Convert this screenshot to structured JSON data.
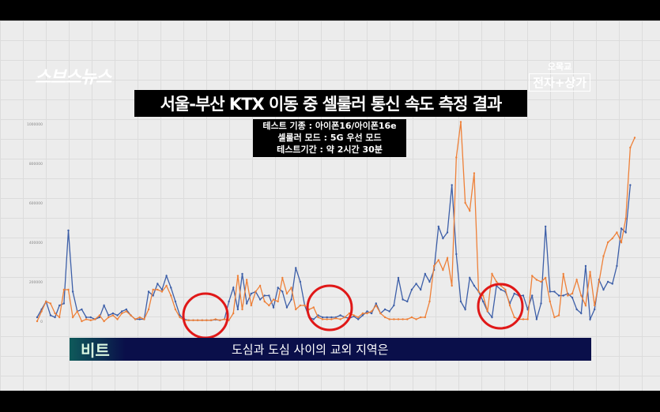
{
  "logo": "스브스뉴스",
  "brand": {
    "line1": "오목교",
    "line2": "전자+상가"
  },
  "title": "서울-부산 KTX 이동 중 셀룰러 통신 속도 측정 결과",
  "subtitle": [
    "테스트 기종 : 아이폰16/아이폰16e",
    "셀룰러 모드 : 5G 우선 모드",
    "테스트기간 : 약 2시간 30분"
  ],
  "caption": {
    "tag": "비트",
    "text": "도심과 도심 사이의 교외 지역은"
  },
  "chart_data": {
    "type": "line",
    "title": "서울-부산 KTX 이동 중 셀룰러 통신 속도 측정 결과",
    "ylim": [
      0,
      1000000
    ],
    "yticks": [
      "0",
      "200000",
      "400000",
      "600000",
      "800000",
      "1000000"
    ],
    "grid": true,
    "legend": "none",
    "colors": {
      "blue": "#3d5fa8",
      "orange": "#ee8038",
      "highlight": "#e01818"
    },
    "series": [
      {
        "color": "blue",
        "values": [
          20000,
          60000,
          100000,
          30000,
          20000,
          80000,
          90000,
          460000,
          150000,
          50000,
          60000,
          20000,
          20000,
          10000,
          20000,
          80000,
          30000,
          40000,
          30000,
          50000,
          60000,
          30000,
          10000,
          10000,
          10000,
          150000,
          130000,
          190000,
          160000,
          230000,
          170000,
          100000,
          30000,
          10000,
          5000,
          5000,
          5000,
          5000,
          5000,
          5000,
          8000,
          5000,
          10000,
          100000,
          170000,
          60000,
          240000,
          90000,
          140000,
          150000,
          110000,
          130000,
          130000,
          70000,
          170000,
          150000,
          70000,
          110000,
          270000,
          200000,
          80000,
          20000,
          10000,
          30000,
          20000,
          20000,
          20000,
          20000,
          30000,
          20000,
          15000,
          25000,
          10000,
          30000,
          50000,
          40000,
          90000,
          40000,
          60000,
          50000,
          80000,
          220000,
          110000,
          100000,
          160000,
          190000,
          160000,
          240000,
          200000,
          260000,
          480000,
          420000,
          450000,
          690000,
          340000,
          100000,
          60000,
          220000,
          180000,
          150000,
          100000,
          50000,
          20000,
          180000,
          160000,
          150000,
          90000,
          140000,
          130000,
          130000,
          60000,
          130000,
          10000,
          90000,
          480000,
          150000,
          150000,
          130000,
          130000,
          140000,
          120000,
          60000,
          40000,
          280000,
          10000,
          60000,
          210000,
          160000,
          200000,
          190000,
          280000,
          470000,
          450000,
          690000
        ]
      },
      {
        "color": "orange",
        "values": [
          0,
          50000,
          100000,
          90000,
          40000,
          20000,
          160000,
          160000,
          20000,
          50000,
          0,
          10000,
          5000,
          10000,
          30000,
          0,
          20000,
          30000,
          10000,
          40000,
          50000,
          30000,
          10000,
          20000,
          10000,
          60000,
          160000,
          160000,
          150000,
          180000,
          130000,
          60000,
          20000,
          5000,
          5000,
          5000,
          5000,
          5000,
          5000,
          5000,
          10000,
          5000,
          10000,
          5000,
          40000,
          230000,
          60000,
          210000,
          80000,
          150000,
          180000,
          100000,
          80000,
          110000,
          100000,
          220000,
          140000,
          170000,
          60000,
          80000,
          80000,
          60000,
          70000,
          20000,
          10000,
          10000,
          10000,
          15000,
          10000,
          20000,
          40000,
          30000,
          20000,
          40000,
          40000,
          50000,
          80000,
          40000,
          20000,
          10000,
          10000,
          10000,
          10000,
          10000,
          20000,
          10000,
          20000,
          20000,
          100000,
          280000,
          310000,
          260000,
          320000,
          180000,
          830000,
          1010000,
          600000,
          560000,
          750000,
          150000,
          130000,
          50000,
          240000,
          200000,
          180000,
          160000,
          80000,
          20000,
          10000,
          10000,
          10000,
          230000,
          210000,
          200000,
          220000,
          100000,
          20000,
          30000,
          240000,
          130000,
          140000,
          210000,
          130000,
          80000,
          250000,
          80000,
          200000,
          330000,
          400000,
          420000,
          450000,
          400000,
          520000,
          880000,
          930000
        ]
      }
    ],
    "annotations": [
      "red circle around first low-speed stretch",
      "red circle around second low-speed stretch",
      "red circle around third low-speed stretch"
    ]
  }
}
